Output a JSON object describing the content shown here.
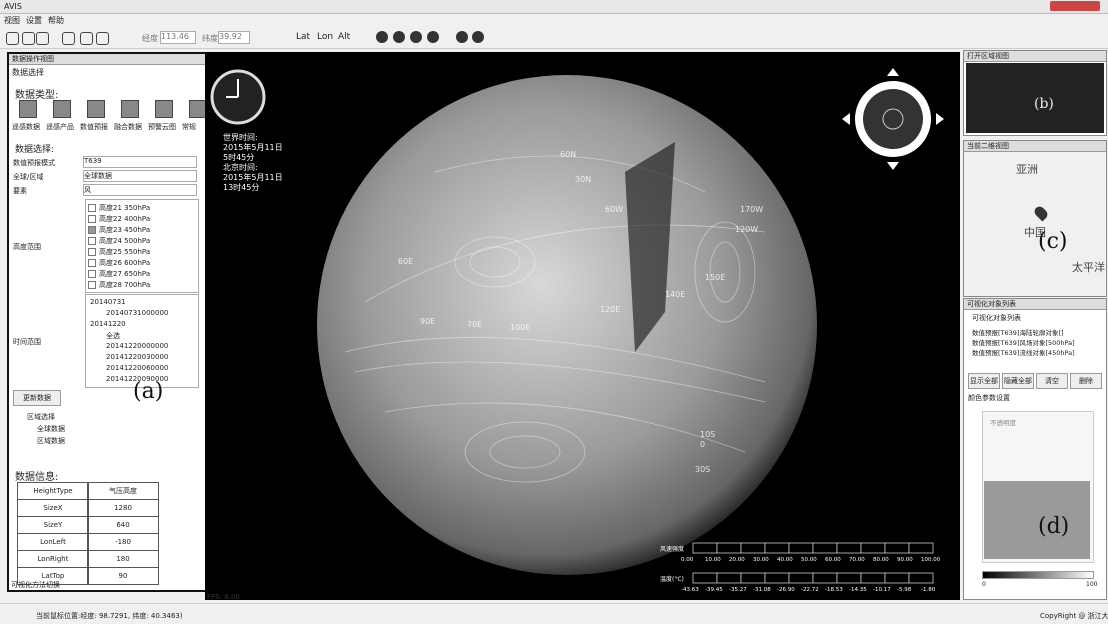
{
  "window": {
    "app": "AVIS"
  },
  "menu": [
    "视图",
    "设置",
    "帮助"
  ],
  "toolbar": {
    "lon_label": "经度",
    "lon_value": "113.46",
    "lat_label": "纬度",
    "lat_value": "39.92",
    "modes": [
      "Lat",
      "Lon",
      "Alt"
    ]
  },
  "left_panel": {
    "title": "数据操作视图",
    "section": "数据选择",
    "type_label": "数据类型:",
    "types": [
      "遥感数据",
      "遥感产品",
      "数值预报",
      "融合数据",
      "预警云图",
      "常规"
    ],
    "select_label": "数据选择:",
    "fields": [
      [
        "数值预报模式",
        "T639"
      ],
      [
        "全球/区域",
        "全球数据"
      ],
      [
        "要素",
        "风"
      ]
    ],
    "height_label": "高度范围",
    "heights": [
      "高度21 350hPa",
      "高度22 400hPa",
      "高度23 450hPa",
      "高度24 500hPa",
      "高度25 550hPa",
      "高度26 600hPa",
      "高度27 650hPa",
      "高度28 700hPa"
    ],
    "time_label": "时间范围",
    "times": [
      "20140731",
      "20140731000000",
      "20141220",
      "全选",
      "20141220000000",
      "20141220030000",
      "20141220060000",
      "20141220090000"
    ],
    "update_button": "更新数据",
    "region_label": "区域选择",
    "regions": [
      "全球数据",
      "区域数据"
    ],
    "info_label": "数据信息:",
    "info_rows": [
      [
        "HeightType",
        "气压高度"
      ],
      [
        "SizeX",
        "1280"
      ],
      [
        "SizeY",
        "640"
      ],
      [
        "LonLeft",
        "-180"
      ],
      [
        "LonRight",
        "180"
      ],
      [
        "LatTop",
        "90"
      ]
    ],
    "tag": "(a)",
    "footer": "可视化方法切换"
  },
  "globe": {
    "clock_text": [
      "世界时间:",
      "2015年5月11日",
      "5时45分",
      "北京时间:",
      "2015年5月11日",
      "13时45分"
    ],
    "grid_labels": [
      "60N",
      "30N",
      "60E",
      "90E",
      "120E",
      "150E",
      "60W",
      "120W",
      "170W",
      "140E",
      "0",
      "30S",
      "70E",
      "100E",
      "10S"
    ],
    "legend_titles": [
      "风速强度",
      "温度(°C)"
    ],
    "scale_1": [
      "0.00",
      "10.00",
      "20.00",
      "30.00",
      "40.00",
      "50.00",
      "60.00",
      "70.00",
      "80.00",
      "90.00",
      "100.00"
    ],
    "scale_2": [
      "-43.63",
      "-39.45",
      "-35.27",
      "-31.08",
      "-26.90",
      "-22.72",
      "-18.53",
      "-14.35",
      "-10.17",
      "-5.98",
      "-1.80"
    ],
    "fps": "FPS: 8.00"
  },
  "right_panel": {
    "overview_title": "打开区域视图",
    "tag_b": "(b)",
    "map_title": "当前二维视图",
    "map_labels": [
      "亚洲",
      "中国",
      "太平洋"
    ],
    "tag_c": "(c)",
    "list_title": "可视化对象列表",
    "list_header": "可视化对象列表",
    "items": [
      "数值预报[T639]海陆轮廓对象[]",
      "数值预报[T639]风场对象[500hPa]",
      "数值预报[T639]流线对象[450hPa]"
    ],
    "buttons": [
      "显示全部",
      "隐藏全部",
      "清空",
      "删除"
    ],
    "color_label": "颜色参数设置",
    "opacity_label": "不透明度",
    "tag_d": "(d)",
    "range": [
      "0",
      "100"
    ]
  },
  "status": {
    "position": "当前鼠标位置:经度: 98.7291, 纬度: 40.3463)",
    "copyright": "CopyRight @ 浙江大学"
  }
}
